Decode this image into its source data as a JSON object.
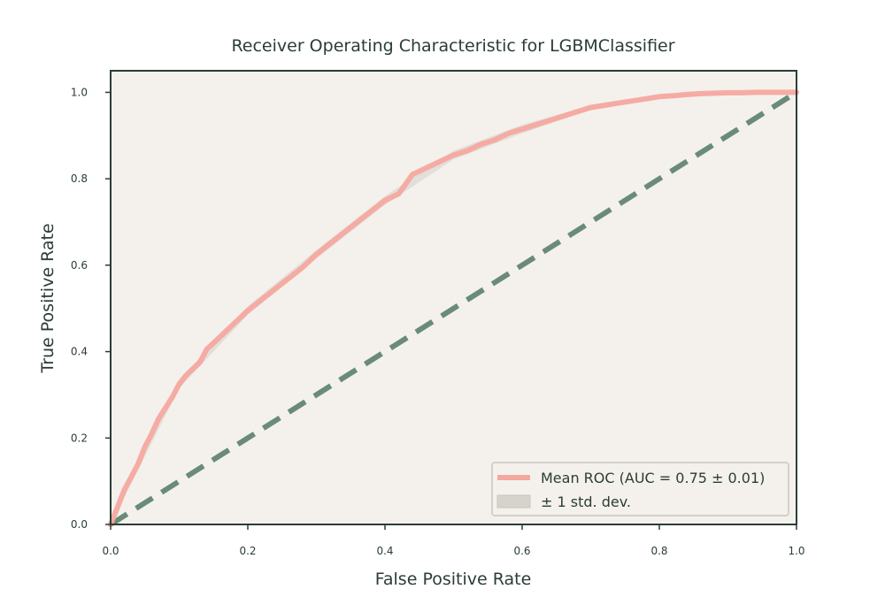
{
  "chart_data": {
    "type": "line",
    "title": "Receiver Operating Characteristic for LGBMClassifier",
    "xlabel": "False Positive Rate",
    "ylabel": "True Positive Rate",
    "xlim": [
      0.0,
      1.0
    ],
    "ylim": [
      0.0,
      1.05
    ],
    "xticks": [
      0.0,
      0.2,
      0.4,
      0.6,
      0.8,
      1.0
    ],
    "yticks": [
      0.0,
      0.2,
      0.4,
      0.6,
      0.8,
      1.0
    ],
    "xtick_labels": [
      "0.0",
      "0.2",
      "0.4",
      "0.6",
      "0.8",
      "1.0"
    ],
    "ytick_labels": [
      "0.0",
      "0.2",
      "0.4",
      "0.6",
      "0.8",
      "1.0"
    ],
    "grid": false,
    "legend_position": "bottom-right",
    "colors": {
      "plot_background": "#f4f1ec",
      "spine": "#2b3d35",
      "mean_roc": "#f5a8a0",
      "std_band": "#d6d3cd",
      "chance_line": "#6a8b79"
    },
    "series": [
      {
        "name": "Mean ROC (AUC = 0.75 ± 0.01)",
        "kind": "line",
        "x": [
          0.0,
          0.01,
          0.02,
          0.03,
          0.04,
          0.05,
          0.06,
          0.07,
          0.08,
          0.09,
          0.1,
          0.11,
          0.12,
          0.13,
          0.14,
          0.16,
          0.18,
          0.2,
          0.22,
          0.24,
          0.26,
          0.28,
          0.3,
          0.32,
          0.34,
          0.36,
          0.38,
          0.4,
          0.42,
          0.44,
          0.46,
          0.48,
          0.5,
          0.52,
          0.54,
          0.56,
          0.58,
          0.6,
          0.62,
          0.64,
          0.66,
          0.68,
          0.7,
          0.72,
          0.74,
          0.76,
          0.78,
          0.8,
          0.82,
          0.84,
          0.86,
          0.88,
          0.9,
          0.92,
          0.94,
          0.96,
          0.98,
          1.0
        ],
        "y": [
          0.0,
          0.04,
          0.08,
          0.11,
          0.14,
          0.18,
          0.21,
          0.245,
          0.27,
          0.295,
          0.325,
          0.345,
          0.36,
          0.375,
          0.405,
          0.435,
          0.465,
          0.495,
          0.52,
          0.545,
          0.57,
          0.595,
          0.625,
          0.65,
          0.675,
          0.7,
          0.725,
          0.75,
          0.765,
          0.81,
          0.825,
          0.84,
          0.855,
          0.865,
          0.88,
          0.89,
          0.905,
          0.915,
          0.925,
          0.935,
          0.945,
          0.955,
          0.965,
          0.97,
          0.975,
          0.98,
          0.985,
          0.99,
          0.992,
          0.995,
          0.997,
          0.998,
          0.999,
          0.999,
          1.0,
          1.0,
          1.0,
          1.0
        ]
      },
      {
        "name": "± 1 std. dev.",
        "kind": "band",
        "x": [
          0.0,
          0.1,
          0.2,
          0.3,
          0.4,
          0.5,
          0.6,
          0.7,
          0.8,
          0.9,
          1.0
        ],
        "lower": [
          0.0,
          0.315,
          0.485,
          0.615,
          0.74,
          0.845,
          0.905,
          0.96,
          0.985,
          0.996,
          1.0
        ],
        "upper": [
          0.0,
          0.335,
          0.505,
          0.635,
          0.76,
          0.865,
          0.925,
          0.97,
          0.995,
          1.0,
          1.0
        ]
      },
      {
        "name": "",
        "kind": "dashed",
        "x": [
          0.0,
          1.0
        ],
        "y": [
          0.0,
          1.0
        ]
      }
    ]
  }
}
